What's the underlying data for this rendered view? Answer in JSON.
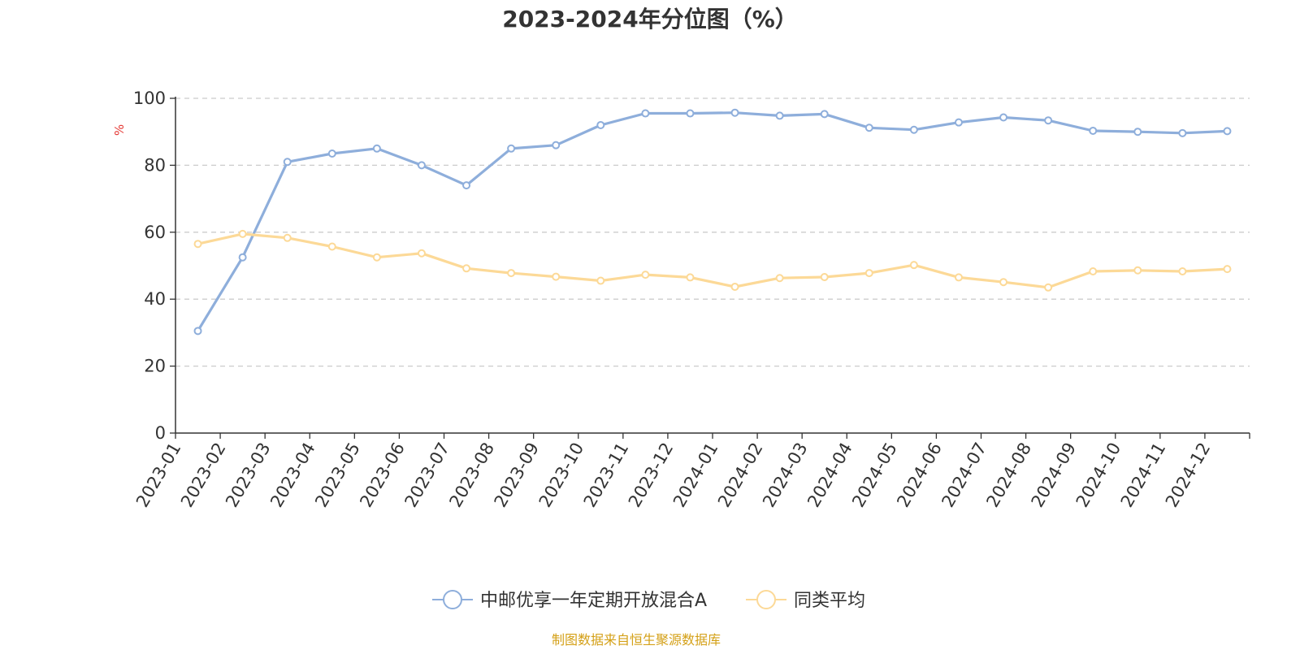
{
  "chart_data": {
    "type": "line",
    "title": "2023-2024年分位图（%）",
    "ylabel": "%",
    "xlabel": "",
    "ylim": [
      0,
      100
    ],
    "yticks": [
      0,
      20,
      40,
      60,
      80,
      100
    ],
    "grid": true,
    "legend_position": "bottom-center",
    "categories": [
      "2023-01",
      "2023-02",
      "2023-03",
      "2023-04",
      "2023-05",
      "2023-06",
      "2023-07",
      "2023-08",
      "2023-09",
      "2023-10",
      "2023-11",
      "2023-12",
      "2024-01",
      "2024-02",
      "2024-03",
      "2024-04",
      "2024-05",
      "2024-06",
      "2024-07",
      "2024-08",
      "2024-09",
      "2024-10",
      "2024-11",
      "2024-12"
    ],
    "series": [
      {
        "name": "中邮优享一年定期开放混合A",
        "color": "#8eaedb",
        "values": [
          30.5,
          52.5,
          81.0,
          83.5,
          85.0,
          80.0,
          74.0,
          85.0,
          86.0,
          92.0,
          95.5,
          95.5,
          95.7,
          94.8,
          95.3,
          91.2,
          90.6,
          92.8,
          94.3,
          93.4,
          90.3,
          90.0,
          89.6,
          90.2
        ]
      },
      {
        "name": "同类平均",
        "color": "#fcd997",
        "values": [
          56.5,
          59.5,
          58.3,
          55.7,
          52.5,
          53.7,
          49.2,
          47.8,
          46.7,
          45.5,
          47.3,
          46.5,
          43.7,
          46.3,
          46.6,
          47.8,
          50.2,
          46.5,
          45.1,
          43.5,
          48.3,
          48.6,
          48.3,
          49.0
        ]
      }
    ]
  },
  "source_text": "制图数据来自恒生聚源数据库",
  "source_color": "#d4a017"
}
